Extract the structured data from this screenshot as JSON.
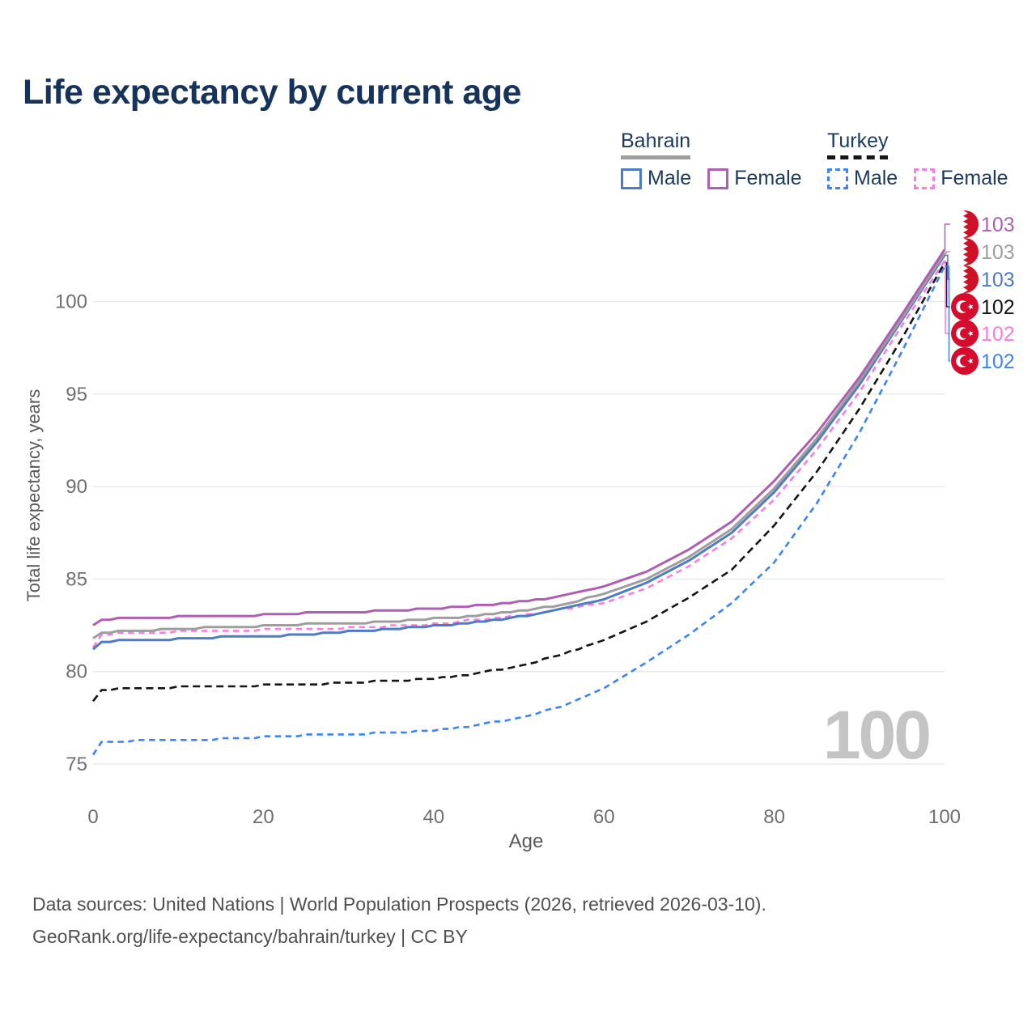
{
  "title": "Life expectancy by current age",
  "watermark": "100",
  "legend": {
    "groups": [
      {
        "title": "Bahrain",
        "line_style": "solid",
        "underline_color": "#9e9e9e",
        "items": [
          {
            "label": "Male",
            "color": "#4d7bc4"
          },
          {
            "label": "Female",
            "color": "#ae5fb2"
          }
        ]
      },
      {
        "title": "Turkey",
        "line_style": "dashed",
        "underline_color": "#161616",
        "items": [
          {
            "label": "Male",
            "color": "#3d84f7"
          },
          {
            "label": "Female",
            "color": "#fb7bdf"
          }
        ]
      }
    ]
  },
  "footer": {
    "line1": "Data sources: United Nations | World Population Prospects (2026, retrieved 2026-03-10).",
    "line2": "GeoRank.org/life-expectancy/bahrain/turkey | CC BY"
  },
  "chart_data": {
    "type": "line",
    "title": "Life expectancy by current age",
    "xlabel": "Age",
    "ylabel": "Total life expectancy, years",
    "xlim": [
      0,
      100
    ],
    "ylim": [
      75,
      100
    ],
    "xticks": [
      0,
      20,
      40,
      60,
      80,
      100
    ],
    "yticks": [
      75,
      80,
      85,
      90,
      95,
      100
    ],
    "grid": "horizontal",
    "legend_position": "top-right",
    "ages": [
      0,
      1,
      5,
      10,
      15,
      20,
      25,
      30,
      35,
      40,
      45,
      50,
      55,
      60,
      65,
      70,
      75,
      80,
      85,
      90,
      95,
      100
    ],
    "series": [
      {
        "name": "Bahrain Female",
        "flag": "bahrain",
        "color": "#ae5fb2",
        "dash": "solid",
        "end_label": "103",
        "values": [
          82.5,
          82.8,
          82.9,
          82.95,
          83.0,
          83.05,
          83.15,
          83.2,
          83.3,
          83.4,
          83.55,
          83.75,
          84.05,
          84.6,
          85.4,
          86.6,
          88.1,
          90.3,
          92.9,
          95.9,
          99.3,
          102.8
        ]
      },
      {
        "name": "Bahrain Both sexes",
        "flag": "bahrain",
        "color": "#9e9e9e",
        "dash": "solid",
        "end_label": "103",
        "values": [
          81.8,
          82.1,
          82.2,
          82.3,
          82.4,
          82.45,
          82.55,
          82.6,
          82.7,
          82.85,
          83.0,
          83.25,
          83.6,
          84.2,
          85.0,
          86.2,
          87.7,
          89.9,
          92.6,
          95.7,
          99.1,
          102.6
        ]
      },
      {
        "name": "Bahrain Male",
        "flag": "bahrain",
        "color": "#4d7bc4",
        "dash": "solid",
        "end_label": "103",
        "values": [
          81.2,
          81.6,
          81.7,
          81.75,
          81.85,
          81.9,
          82.0,
          82.15,
          82.3,
          82.45,
          82.65,
          82.95,
          83.35,
          83.9,
          84.8,
          86.0,
          87.5,
          89.7,
          92.4,
          95.5,
          99.0,
          102.5
        ]
      },
      {
        "name": "Turkey Both sexes",
        "flag": "turkey",
        "color": "#141414",
        "dash": "dashed",
        "end_label": "102",
        "values": [
          78.4,
          79.0,
          79.1,
          79.15,
          79.2,
          79.25,
          79.3,
          79.4,
          79.5,
          79.6,
          79.9,
          80.3,
          80.9,
          81.7,
          82.7,
          84.0,
          85.5,
          87.9,
          90.8,
          94.2,
          98.0,
          102.1
        ]
      },
      {
        "name": "Turkey Female",
        "flag": "turkey",
        "color": "#fb7bdf",
        "dash": "dashed",
        "end_label": "102",
        "values": [
          81.3,
          82.0,
          82.1,
          82.15,
          82.2,
          82.25,
          82.3,
          82.35,
          82.45,
          82.55,
          82.8,
          83.0,
          83.35,
          83.7,
          84.5,
          85.7,
          87.2,
          89.3,
          92.0,
          95.1,
          98.7,
          102.2
        ]
      },
      {
        "name": "Turkey Male",
        "flag": "turkey",
        "color": "#3d84f7",
        "dash": "dashed",
        "end_label": "102",
        "values": [
          75.5,
          76.15,
          76.25,
          76.3,
          76.35,
          76.45,
          76.55,
          76.6,
          76.7,
          76.8,
          77.1,
          77.5,
          78.1,
          79.1,
          80.5,
          82.0,
          83.7,
          85.9,
          89.1,
          92.9,
          97.3,
          101.9
        ]
      }
    ],
    "flag_colors": {
      "bahrain_red": "#ce1126",
      "turkey_red": "#d60c2c",
      "white": "#ffffff"
    }
  }
}
